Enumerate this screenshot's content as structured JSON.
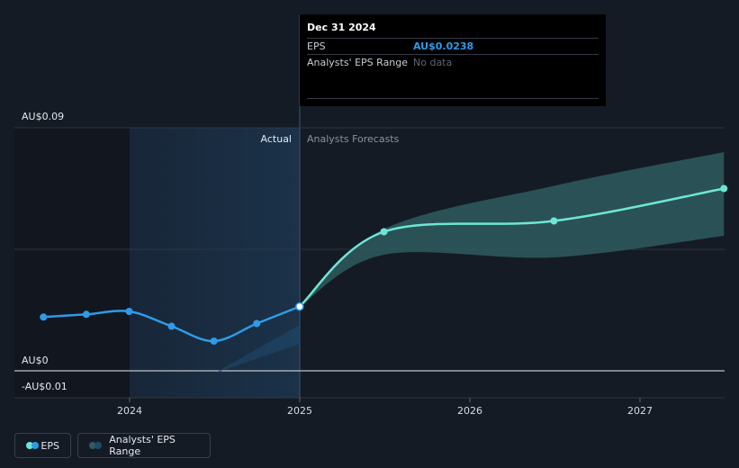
{
  "chart_data": {
    "type": "line",
    "y_axis": {
      "ticks": [
        "AU$0.09",
        "AU$0",
        "-AU$0.01"
      ],
      "ylim": [
        -0.01,
        0.09
      ]
    },
    "x_axis": {
      "ticks": [
        "2024",
        "2025",
        "2026",
        "2027"
      ],
      "xlim": [
        "2023-07",
        "2027-07"
      ]
    },
    "regions": {
      "actual": "Actual",
      "forecast": "Analysts Forecasts"
    },
    "series": [
      {
        "name": "EPS",
        "color": "#2f9be8",
        "points": [
          {
            "x": "2023-06-30",
            "y": 0.0199
          },
          {
            "x": "2023-09-30",
            "y": 0.0209
          },
          {
            "x": "2023-12-31",
            "y": 0.022
          },
          {
            "x": "2024-03-31",
            "y": 0.0165
          },
          {
            "x": "2024-06-30",
            "y": 0.011
          },
          {
            "x": "2024-09-30",
            "y": 0.0175
          },
          {
            "x": "2024-12-31",
            "y": 0.0238
          }
        ]
      },
      {
        "name": "EPS",
        "color": "#6ee6d6",
        "points": [
          {
            "x": "2024-12-31",
            "y": 0.0238
          },
          {
            "x": "2025-06-30",
            "y": 0.0515
          },
          {
            "x": "2026-06-30",
            "y": 0.0555
          },
          {
            "x": "2027-06-30",
            "y": 0.0675
          }
        ]
      }
    ],
    "ranges": [
      {
        "name": "Analysts' EPS Range",
        "color": "#2e5b5f",
        "points": [
          {
            "x": "2024-12-31",
            "low": 0.0238,
            "high": 0.0238
          },
          {
            "x": "2025-06-30",
            "low": 0.043,
            "high": 0.0525
          },
          {
            "x": "2026-06-30",
            "low": 0.042,
            "high": 0.0685
          },
          {
            "x": "2027-06-30",
            "low": 0.05,
            "high": 0.081
          }
        ]
      },
      {
        "name": "Analysts' EPS Range",
        "color": "#1e4a6e",
        "points": [
          {
            "x": "2024-06-30",
            "low": -0.001,
            "high": -0.001
          },
          {
            "x": "2024-12-31",
            "low": 0.01,
            "high": 0.017
          }
        ]
      }
    ],
    "grid": true,
    "legend_position": "bottom-left"
  },
  "tooltip": {
    "date": "Dec 31 2024",
    "eps_label": "EPS",
    "eps_value": "AU$0.0238",
    "range_label": "Analysts' EPS Range",
    "range_value": "No data"
  },
  "legend": {
    "eps_label": "EPS",
    "range_label": "Analysts' EPS Range"
  },
  "colors": {
    "background": "#151b24",
    "eps_actual": "#2f9be8",
    "eps_forecast": "#6ee6d6",
    "range_forecast": "#2e5b5f",
    "highlight_band": "#1b2b3d"
  }
}
